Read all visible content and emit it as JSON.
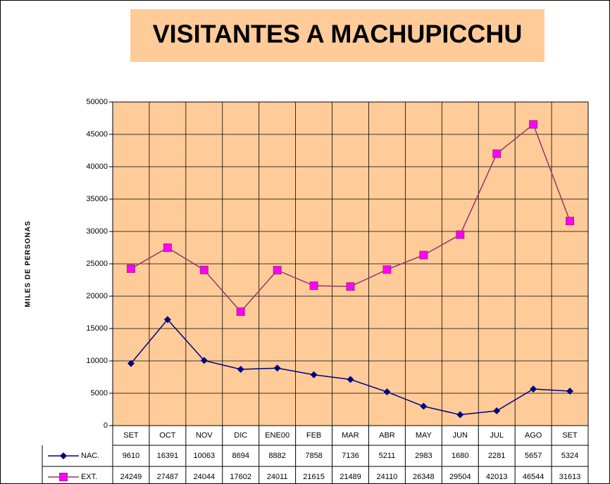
{
  "chart_data": {
    "type": "line",
    "title": "VISITANTES A MACHUPICCHU",
    "y_label": "MILES DE PERSONAS",
    "categories": [
      "SET",
      "OCT",
      "NOV",
      "DIC",
      "ENE00",
      "FEB",
      "MAR",
      "ABR",
      "MAY",
      "JUN",
      "JUL",
      "AGO",
      "SET"
    ],
    "series": [
      {
        "name": "NAC.",
        "color": "#000080",
        "marker": "diamond",
        "values": [
          9610,
          16391,
          10063,
          8694,
          8882,
          7858,
          7136,
          5211,
          2983,
          1680,
          2281,
          5657,
          5324
        ]
      },
      {
        "name": "EXT.",
        "color": "#993366",
        "marker": "square",
        "marker_color": "#ff00ff",
        "values": [
          24249,
          27487,
          24044,
          17602,
          24011,
          21615,
          21489,
          24110,
          26348,
          29504,
          42013,
          46544,
          31613
        ]
      }
    ],
    "ylim": [
      0,
      50000
    ],
    "yticks": [
      0,
      5000,
      10000,
      15000,
      20000,
      25000,
      30000,
      35000,
      40000,
      45000,
      50000
    ],
    "grid": true,
    "plot_color": "#ffcc99"
  }
}
